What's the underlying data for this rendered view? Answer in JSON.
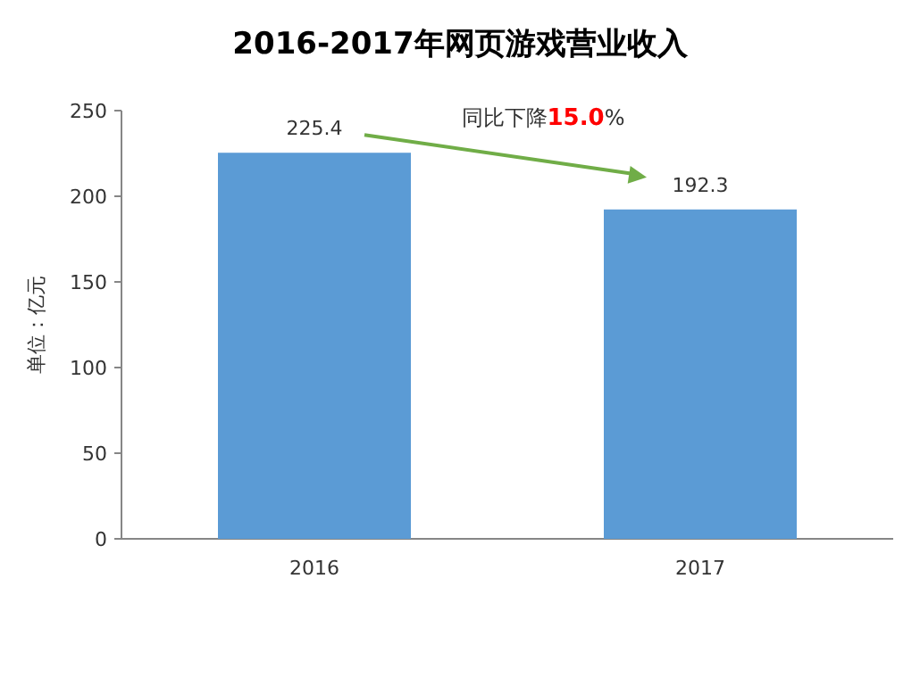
{
  "chart_data": {
    "type": "bar",
    "title": "2016-2017年网页游戏营业收入",
    "ylabel": "单位：亿元",
    "categories": [
      "2016",
      "2017"
    ],
    "values": [
      225.4,
      192.3
    ],
    "color": "#5b9bd5",
    "ylim": [
      0,
      250
    ],
    "yticks": [
      0,
      50,
      100,
      150,
      200,
      250
    ],
    "grid": false,
    "data_labels": true,
    "annotations": [
      "同比下降15.0%"
    ]
  }
}
